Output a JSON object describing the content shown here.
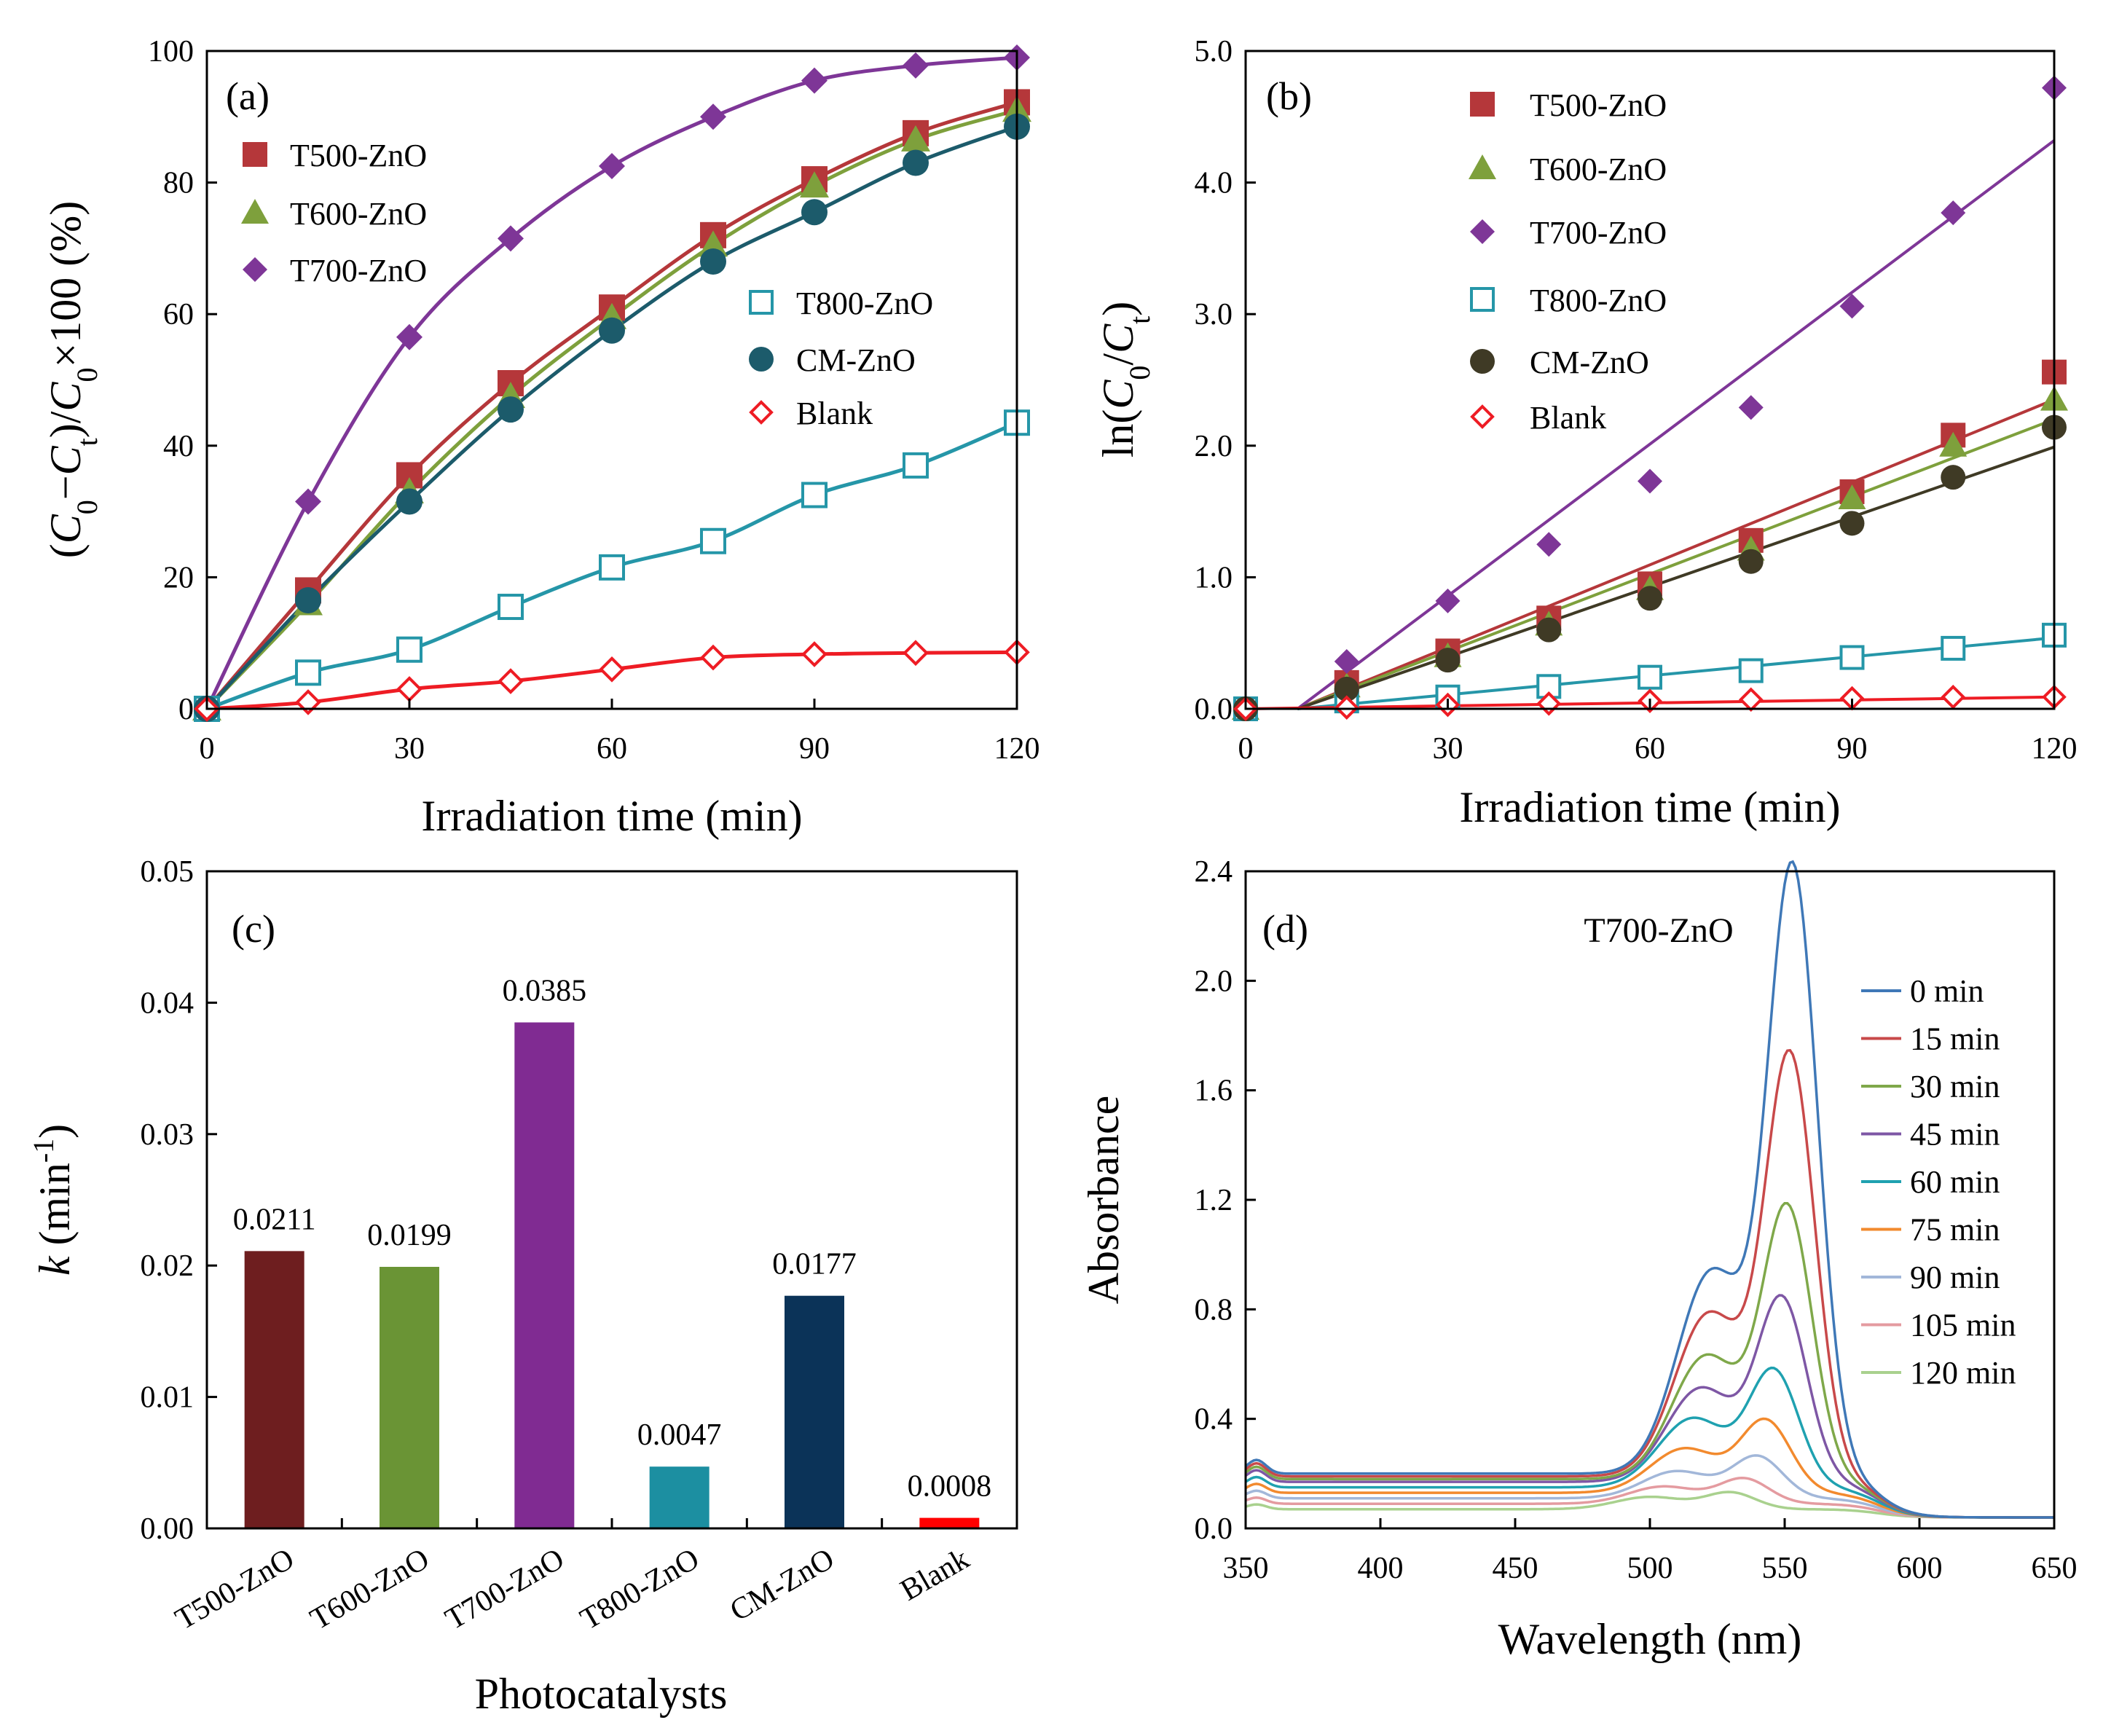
{
  "colors": {
    "t500": "#b5373a",
    "t600": "#7ea03c",
    "t700": "#7e3697",
    "t800": "#2596a8",
    "cm": "#1c5b6b",
    "cm_b": "#3f3a25",
    "blank": "#ee1c24",
    "bar_t500": "#6e1e1f",
    "bar_t600": "#6a9435",
    "bar_t700": "#802b92",
    "bar_t800": "#1c8fa1",
    "bar_cm": "#0b3358",
    "bar_blank": "#ff0000"
  },
  "chart_data": [
    {
      "id": "a",
      "type": "line",
      "panel_label": "(a)",
      "xlabel": "Irradiation time (min)",
      "ylabel_parts": [
        "(",
        "C",
        "0",
        "−",
        "C",
        "t",
        ")/",
        "C",
        "0",
        "×100 (%)"
      ],
      "xlim": [
        0,
        120
      ],
      "ylim": [
        0,
        100
      ],
      "xticks": [
        "0",
        "30",
        "60",
        "90",
        "120"
      ],
      "yticks": [
        "0",
        "20",
        "40",
        "60",
        "80",
        "100"
      ],
      "x": [
        0,
        15,
        30,
        45,
        60,
        75,
        90,
        105,
        120
      ],
      "series": [
        {
          "name": "T500-ZnO",
          "marker": "square",
          "values": [
            0,
            18,
            35.5,
            49.5,
            61,
            72,
            80.5,
            87.5,
            92.2
          ]
        },
        {
          "name": "T600-ZnO",
          "marker": "triangle",
          "values": [
            0,
            16,
            33,
            47.5,
            59.5,
            70.5,
            79.5,
            86.5,
            91
          ]
        },
        {
          "name": "T700-ZnO",
          "marker": "diamond",
          "values": [
            0,
            31.5,
            56.5,
            71.5,
            82.5,
            90,
            95.5,
            97.8,
            99
          ]
        },
        {
          "name": "T800-ZnO",
          "marker": "open-square",
          "values": [
            0,
            5.5,
            9,
            15.5,
            21.5,
            25.5,
            32.5,
            37,
            43.5
          ]
        },
        {
          "name": "CM-ZnO",
          "marker": "circle",
          "values": [
            0,
            16.5,
            31.5,
            45.5,
            57.5,
            68,
            75.5,
            83,
            88.5
          ]
        },
        {
          "name": "Blank",
          "marker": "open-diamond",
          "values": [
            0,
            1,
            3,
            4.2,
            6,
            7.8,
            8.3,
            8.5,
            8.6
          ]
        }
      ]
    },
    {
      "id": "b",
      "type": "scatter",
      "panel_label": "(b)",
      "xlabel": "Irradiation time (min)",
      "ylabel_parts": [
        "ln(",
        "C",
        "0",
        "/",
        "C",
        "t",
        ")"
      ],
      "xlim": [
        0,
        120
      ],
      "ylim": [
        0,
        5
      ],
      "xticks": [
        "0",
        "30",
        "60",
        "90",
        "120"
      ],
      "yticks": [
        "0.0",
        "1.0",
        "2.0",
        "3.0",
        "4.0",
        "5.0"
      ],
      "x": [
        0,
        15,
        30,
        45,
        60,
        75,
        90,
        105,
        120
      ],
      "series": [
        {
          "name": "T500-ZnO",
          "marker": "square",
          "values": [
            0,
            0.2,
            0.44,
            0.69,
            0.95,
            1.28,
            1.65,
            2.08,
            2.56
          ]
        },
        {
          "name": "T600-ZnO",
          "marker": "triangle",
          "values": [
            0,
            0.17,
            0.4,
            0.64,
            0.91,
            1.21,
            1.6,
            2.0,
            2.35
          ]
        },
        {
          "name": "T700-ZnO",
          "marker": "diamond",
          "values": [
            0,
            0.36,
            0.82,
            1.25,
            1.73,
            2.29,
            3.06,
            3.77,
            4.72
          ]
        },
        {
          "name": "T800-ZnO",
          "marker": "open-square",
          "values": [
            0,
            0.06,
            0.09,
            0.17,
            0.24,
            0.29,
            0.39,
            0.46,
            0.56
          ]
        },
        {
          "name": "CM-ZnO",
          "marker": "circle",
          "values": [
            0,
            0.15,
            0.37,
            0.6,
            0.84,
            1.12,
            1.41,
            1.76,
            2.14
          ]
        },
        {
          "name": "Blank",
          "marker": "open-diamond",
          "values": [
            0,
            0.01,
            0.03,
            0.04,
            0.06,
            0.07,
            0.08,
            0.09,
            0.09
          ]
        }
      ],
      "fits": [
        {
          "name": "T500-ZnO",
          "x": [
            7.7,
            120
          ],
          "y": [
            0,
            2.35
          ]
        },
        {
          "name": "T600-ZnO",
          "x": [
            7.7,
            120
          ],
          "y": [
            0,
            2.2
          ]
        },
        {
          "name": "T700-ZnO",
          "x": [
            7.7,
            120
          ],
          "y": [
            0,
            4.32
          ]
        },
        {
          "name": "T800-ZnO",
          "x": [
            7.7,
            120
          ],
          "y": [
            0,
            0.54
          ]
        },
        {
          "name": "CM-ZnO",
          "x": [
            7.7,
            120
          ],
          "y": [
            0,
            1.99
          ]
        },
        {
          "name": "Blank",
          "x": [
            0,
            120
          ],
          "y": [
            0,
            0.09
          ]
        }
      ]
    },
    {
      "id": "c",
      "type": "bar",
      "panel_label": "(c)",
      "xlabel": "Photocatalysts",
      "ylabel_parts": [
        "k",
        " (min",
        "-1",
        ")"
      ],
      "ylim": [
        0,
        0.05
      ],
      "yticks": [
        "0.00",
        "0.01",
        "0.02",
        "0.03",
        "0.04",
        "0.05"
      ],
      "categories": [
        "T500-ZnO",
        "T600-ZnO",
        "T700-ZnO",
        "T800-ZnO",
        "CM-ZnO",
        "Blank"
      ],
      "values": [
        0.0211,
        0.0199,
        0.0385,
        0.0047,
        0.0177,
        0.0008
      ],
      "labels": [
        "0.0211",
        "0.0199",
        "0.0385",
        "0.0047",
        "0.0177",
        "0.0008"
      ]
    },
    {
      "id": "d",
      "type": "line",
      "panel_label": "(d)",
      "title": "T700-ZnO",
      "xlabel": "Wavelength (nm)",
      "ylabel": "Absorbance",
      "xlim": [
        350,
        650
      ],
      "ylim": [
        0,
        2.4
      ],
      "xticks": [
        "350",
        "400",
        "450",
        "500",
        "550",
        "600",
        "650"
      ],
      "yticks": [
        "0.0",
        "0.4",
        "0.8",
        "1.2",
        "1.6",
        "2.0",
        "2.4"
      ],
      "series": [
        {
          "name": "0 min",
          "color": "#3f78b7",
          "base": 0.2,
          "peak": 2.19,
          "center": 553,
          "shoulder": 0.82
        },
        {
          "name": "15 min",
          "color": "#c8494a",
          "base": 0.19,
          "peak": 1.52,
          "center": 552,
          "shoulder": 0.66
        },
        {
          "name": "30 min",
          "color": "#7fa84a",
          "base": 0.18,
          "peak": 0.98,
          "center": 551,
          "shoulder": 0.5
        },
        {
          "name": "45 min",
          "color": "#7e57a5",
          "base": 0.17,
          "peak": 0.66,
          "center": 549,
          "shoulder": 0.38
        },
        {
          "name": "60 min",
          "color": "#1fa1b0",
          "base": 0.15,
          "peak": 0.42,
          "center": 546,
          "shoulder": 0.28
        },
        {
          "name": "75 min",
          "color": "#f28a2e",
          "base": 0.13,
          "peak": 0.26,
          "center": 543,
          "shoulder": 0.18
        },
        {
          "name": "90 min",
          "color": "#a2b7d9",
          "base": 0.11,
          "peak": 0.15,
          "center": 540,
          "shoulder": 0.11
        },
        {
          "name": "105 min",
          "color": "#e49ba0",
          "base": 0.09,
          "peak": 0.09,
          "center": 535,
          "shoulder": 0.07
        },
        {
          "name": "120 min",
          "color": "#a9d18e",
          "base": 0.07,
          "peak": 0.06,
          "center": 530,
          "shoulder": 0.05
        }
      ]
    }
  ]
}
